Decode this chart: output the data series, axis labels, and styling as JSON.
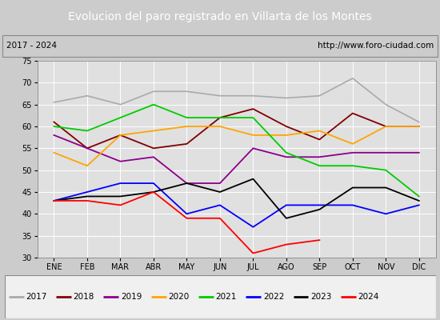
{
  "title": "Evolucion del paro registrado en Villarta de los Montes",
  "subtitle_left": "2017 - 2024",
  "subtitle_right": "http://www.foro-ciudad.com",
  "months": [
    "ENE",
    "FEB",
    "MAR",
    "ABR",
    "MAY",
    "JUN",
    "JUL",
    "AGO",
    "SEP",
    "OCT",
    "NOV",
    "DIC"
  ],
  "ylim": [
    30,
    75
  ],
  "yticks": [
    30,
    35,
    40,
    45,
    50,
    55,
    60,
    65,
    70,
    75
  ],
  "series": {
    "2017": {
      "color": "#aaaaaa",
      "linewidth": 1.2,
      "data": [
        65.5,
        67,
        65,
        68,
        68,
        67,
        67,
        66.5,
        67,
        71,
        65,
        61
      ]
    },
    "2018": {
      "color": "#800000",
      "linewidth": 1.3,
      "data": [
        61,
        55,
        58,
        55,
        56,
        62,
        64,
        60,
        57,
        63,
        60,
        60
      ]
    },
    "2019": {
      "color": "#8b008b",
      "linewidth": 1.3,
      "data": [
        58,
        55,
        52,
        53,
        47,
        47,
        55,
        53,
        53,
        54,
        54,
        54
      ]
    },
    "2020": {
      "color": "#ffa500",
      "linewidth": 1.3,
      "data": [
        54,
        51,
        58,
        59,
        60,
        60,
        58,
        58,
        59,
        56,
        60,
        60
      ]
    },
    "2021": {
      "color": "#00cc00",
      "linewidth": 1.3,
      "data": [
        60,
        59,
        62,
        65,
        62,
        62,
        62,
        54,
        51,
        51,
        50,
        44
      ]
    },
    "2022": {
      "color": "#0000ff",
      "linewidth": 1.3,
      "data": [
        43,
        45,
        47,
        47,
        40,
        42,
        37,
        42,
        42,
        42,
        40,
        42
      ]
    },
    "2023": {
      "color": "#000000",
      "linewidth": 1.3,
      "data": [
        43,
        44,
        44,
        45,
        47,
        45,
        48,
        39,
        41,
        46,
        46,
        43
      ]
    },
    "2024": {
      "color": "#ff0000",
      "linewidth": 1.3,
      "data": [
        43,
        43,
        42,
        45,
        39,
        39,
        31,
        33,
        34,
        null,
        null,
        null
      ]
    }
  },
  "background_color": "#cccccc",
  "plot_bg_color": "#e0e0e0",
  "title_bg_color": "#4472c4",
  "title_color": "#ffffff",
  "subtitle_bg_color": "#f0f0f0",
  "legend_bg_color": "#f0f0f0",
  "grid_color": "#ffffff",
  "title_fontsize": 10,
  "subtitle_fontsize": 7.5,
  "tick_fontsize": 7,
  "legend_fontsize": 7.5
}
